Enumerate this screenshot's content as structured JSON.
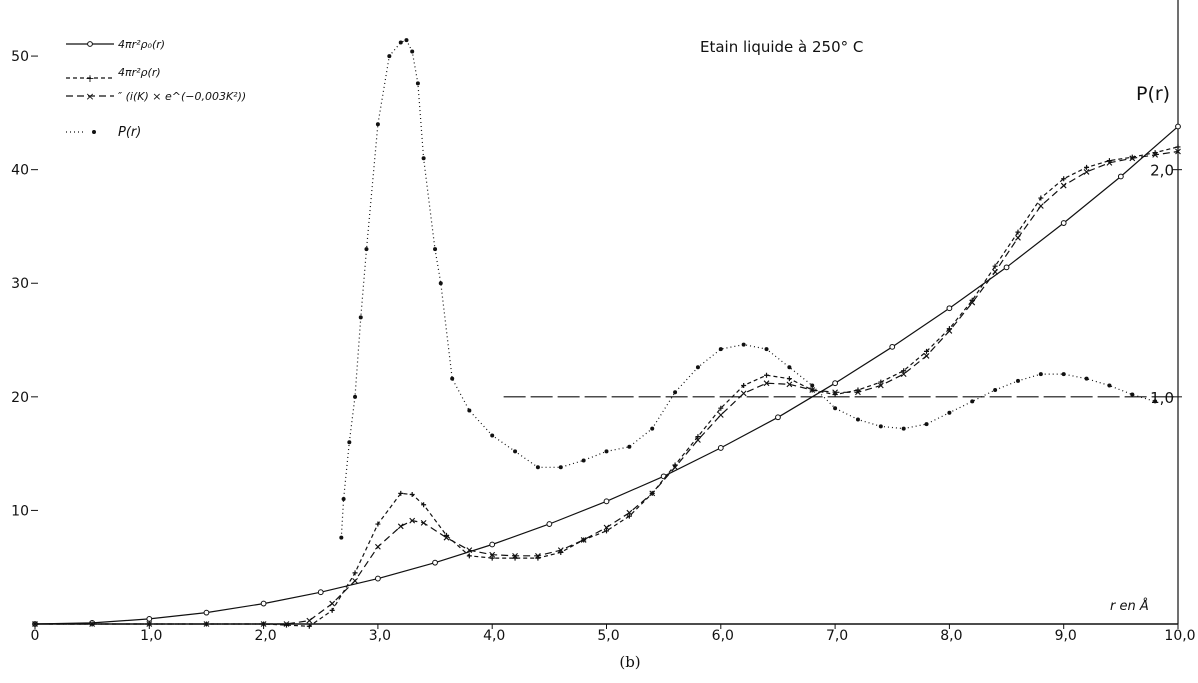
{
  "chart_data": {
    "type": "line",
    "title": "Etain liquide à 250° C",
    "xlabel": "r en Å",
    "ylabel_right": "P(r)",
    "caption": "(b)",
    "xlim": [
      0,
      10
    ],
    "ylim_left": [
      0,
      53
    ],
    "ylim_right_scale": "right axis value = left axis value / 20",
    "x_ticks": [
      {
        "value": 0,
        "label": "0"
      },
      {
        "value": 1,
        "label": "1,0"
      },
      {
        "value": 2,
        "label": "2,0"
      },
      {
        "value": 3,
        "label": "3,0"
      },
      {
        "value": 4,
        "label": "4,0"
      },
      {
        "value": 5,
        "label": "5,0"
      },
      {
        "value": 6,
        "label": "6,0"
      },
      {
        "value": 7,
        "label": "7,0"
      },
      {
        "value": 8,
        "label": "8,0"
      },
      {
        "value": 9,
        "label": "9,0"
      },
      {
        "value": 10,
        "label": "10,0"
      }
    ],
    "y_ticks_left": [
      {
        "value": 10,
        "label": "10"
      },
      {
        "value": 20,
        "label": "20"
      },
      {
        "value": 30,
        "label": "30"
      },
      {
        "value": 40,
        "label": "40"
      },
      {
        "value": 50,
        "label": "50"
      }
    ],
    "y_ticks_right": [
      {
        "value": 1.0,
        "label": "1,0"
      },
      {
        "value": 2.0,
        "label": "2,0"
      }
    ],
    "grid": false,
    "legend_position": "top-left",
    "reference_line": {
      "y_right": 1.0,
      "x_start": 4.1,
      "x_end": 10.0,
      "style": "long-dash"
    },
    "series": [
      {
        "name": "4πr²ρ₀(r)",
        "style": "solid",
        "marker": "circle",
        "axis": "left",
        "x": [
          0,
          0.5,
          1.0,
          1.5,
          2.0,
          2.5,
          3.0,
          3.5,
          4.0,
          4.5,
          5.0,
          5.5,
          6.0,
          6.5,
          7.0,
          7.5,
          8.0,
          8.5,
          9.0,
          9.5,
          10.0
        ],
        "y": [
          0,
          0.1,
          0.45,
          1.0,
          1.8,
          2.8,
          4.0,
          5.4,
          7.0,
          8.8,
          10.8,
          13.0,
          15.5,
          18.2,
          21.2,
          24.4,
          27.8,
          31.4,
          35.3,
          39.4,
          43.8
        ]
      },
      {
        "name": "4πr²ρ(r)",
        "style": "short-dash",
        "marker": "plus",
        "axis": "left",
        "x": [
          0,
          0.5,
          1.0,
          1.5,
          2.0,
          2.2,
          2.4,
          2.6,
          2.8,
          3.0,
          3.2,
          3.3,
          3.4,
          3.6,
          3.8,
          4.0,
          4.2,
          4.4,
          4.6,
          4.8,
          5.0,
          5.2,
          5.4,
          5.6,
          5.8,
          6.0,
          6.2,
          6.4,
          6.6,
          6.8,
          7.0,
          7.2,
          7.4,
          7.6,
          7.8,
          8.0,
          8.2,
          8.4,
          8.6,
          8.8,
          9.0,
          9.2,
          9.4,
          9.6,
          9.8,
          10.0
        ],
        "y": [
          0,
          0,
          0,
          0,
          0,
          -0.1,
          -0.2,
          1.2,
          4.5,
          8.8,
          11.5,
          11.4,
          10.5,
          7.8,
          6.0,
          5.8,
          5.8,
          5.8,
          6.3,
          7.4,
          8.2,
          9.5,
          11.5,
          14.0,
          16.5,
          19.0,
          21.0,
          21.9,
          21.6,
          20.6,
          20.2,
          20.6,
          21.3,
          22.3,
          24.0,
          26.0,
          28.5,
          31.5,
          34.5,
          37.5,
          39.2,
          40.2,
          40.8,
          41.1,
          41.5,
          42.0
        ]
      },
      {
        "name": "″ (i(K) × e^(−0,003K²))",
        "style": "dash",
        "marker": "x",
        "axis": "left",
        "x": [
          0,
          0.5,
          1.0,
          1.5,
          2.0,
          2.2,
          2.4,
          2.6,
          2.8,
          3.0,
          3.2,
          3.3,
          3.4,
          3.6,
          3.8,
          4.0,
          4.2,
          4.4,
          4.6,
          4.8,
          5.0,
          5.2,
          5.4,
          5.6,
          5.8,
          6.0,
          6.2,
          6.4,
          6.6,
          6.8,
          7.0,
          7.2,
          7.4,
          7.6,
          7.8,
          8.0,
          8.2,
          8.4,
          8.6,
          8.8,
          9.0,
          9.2,
          9.4,
          9.6,
          9.8,
          10.0
        ],
        "y": [
          0,
          0,
          0,
          0,
          0,
          0,
          0.3,
          1.8,
          3.8,
          6.8,
          8.6,
          9.1,
          8.9,
          7.6,
          6.5,
          6.1,
          6.0,
          6.0,
          6.5,
          7.4,
          8.5,
          9.8,
          11.5,
          13.8,
          16.2,
          18.4,
          20.3,
          21.2,
          21.1,
          20.6,
          20.4,
          20.4,
          21.0,
          22.0,
          23.6,
          25.8,
          28.3,
          31.0,
          34.0,
          36.8,
          38.6,
          39.8,
          40.6,
          41.0,
          41.3,
          41.6
        ]
      },
      {
        "name": "P(r)",
        "style": "dotted",
        "marker": "dot",
        "axis": "right",
        "x": [
          2.68,
          2.7,
          2.75,
          2.8,
          2.85,
          2.9,
          3.0,
          3.1,
          3.2,
          3.25,
          3.3,
          3.35,
          3.4,
          3.5,
          3.55,
          3.65,
          3.8,
          4.0,
          4.2,
          4.4,
          4.6,
          4.8,
          5.0,
          5.2,
          5.4,
          5.6,
          5.8,
          6.0,
          6.2,
          6.4,
          6.6,
          6.8,
          7.0,
          7.2,
          7.4,
          7.6,
          7.8,
          8.0,
          8.2,
          8.4,
          8.6,
          8.8,
          9.0,
          9.2,
          9.4,
          9.6,
          9.8
        ],
        "y": [
          0.38,
          0.55,
          0.8,
          1.0,
          1.35,
          1.65,
          2.2,
          2.5,
          2.56,
          2.57,
          2.52,
          2.38,
          2.05,
          1.65,
          1.5,
          1.08,
          0.94,
          0.83,
          0.76,
          0.69,
          0.69,
          0.72,
          0.76,
          0.78,
          0.86,
          1.02,
          1.13,
          1.21,
          1.23,
          1.21,
          1.13,
          1.05,
          0.95,
          0.9,
          0.87,
          0.86,
          0.88,
          0.93,
          0.98,
          1.03,
          1.07,
          1.1,
          1.1,
          1.08,
          1.05,
          1.01,
          0.98
        ]
      }
    ]
  }
}
